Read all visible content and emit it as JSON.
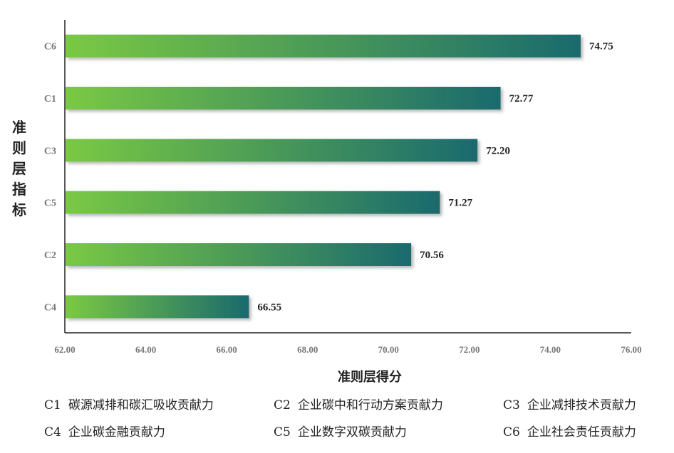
{
  "chart_data": {
    "type": "bar",
    "orientation": "horizontal",
    "categories": [
      "C6",
      "C1",
      "C3",
      "C5",
      "C2",
      "C4"
    ],
    "values": [
      74.75,
      72.77,
      72.2,
      71.27,
      70.56,
      66.55
    ],
    "value_labels": [
      "74.75",
      "72.77",
      "72.20",
      "71.27",
      "70.56",
      "66.55"
    ],
    "xlabel": "准则层得分",
    "ylabel": "准则层指标",
    "xlim": [
      62,
      76
    ],
    "xticks": [
      62,
      64,
      66,
      68,
      70,
      72,
      74,
      76
    ],
    "xtick_labels": [
      "62.00",
      "64.00",
      "66.00",
      "68.00",
      "70.00",
      "72.00",
      "74.00",
      "76.00"
    ],
    "grid": false,
    "bar_gradient": [
      "#7ac943",
      "#1a6a6e"
    ],
    "legend_placement": "bottom",
    "legend": [
      {
        "code": "C1",
        "text": "碳源减排和碳汇吸收贡献力"
      },
      {
        "code": "C2",
        "text": "企业碳中和行动方案贡献力"
      },
      {
        "code": "C3",
        "text": "企业减排技术贡献力"
      },
      {
        "code": "C4",
        "text": "企业碳金融贡献力"
      },
      {
        "code": "C5",
        "text": "企业数字双碳贡献力"
      },
      {
        "code": "C6",
        "text": "企业社会责任贡献力"
      }
    ]
  }
}
